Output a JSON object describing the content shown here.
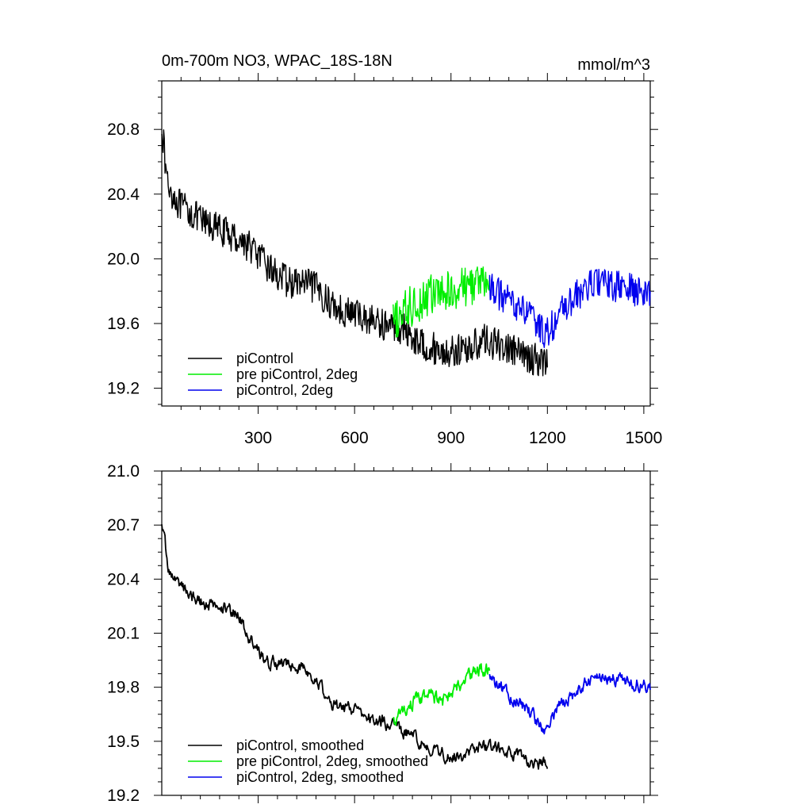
{
  "chart_data": [
    {
      "type": "line",
      "title": "0m-700m NO3, WPAC_18S-18N",
      "units": "mmol/m^3",
      "xlim": [
        0,
        1520
      ],
      "ylim": [
        19.09,
        21.1
      ],
      "xticks": [
        300,
        600,
        900,
        1200,
        1500
      ],
      "yticks": [
        19.2,
        19.6,
        20.0,
        20.4,
        20.8
      ],
      "ytick_labels": [
        "19.2",
        "19.6",
        "20.0",
        "20.4",
        "20.8"
      ],
      "legend_position": "bottom-left",
      "series": [
        {
          "name": "piControl",
          "color": "#000000",
          "x": [
            0,
            10,
            20,
            40,
            60,
            80,
            100,
            130,
            160,
            200,
            240,
            280,
            320,
            360,
            400,
            440,
            480,
            520,
            560,
            600,
            640,
            680,
            720,
            760,
            800,
            840,
            880,
            920,
            960,
            1000,
            1040,
            1080,
            1120,
            1160,
            1200
          ],
          "y": [
            20.85,
            20.6,
            20.45,
            20.38,
            20.32,
            20.3,
            20.27,
            20.22,
            20.2,
            20.16,
            20.12,
            20.07,
            19.97,
            19.9,
            19.85,
            19.85,
            19.82,
            19.73,
            19.68,
            19.66,
            19.63,
            19.6,
            19.58,
            19.56,
            19.48,
            19.45,
            19.42,
            19.43,
            19.45,
            19.5,
            19.47,
            19.45,
            19.4,
            19.38,
            19.36
          ],
          "noise": 0.1
        },
        {
          "name": "pre piControl, 2deg",
          "color": "#00ee00",
          "x": [
            720,
            760,
            800,
            840,
            880,
            920,
            960,
            1000,
            1020
          ],
          "y": [
            19.6,
            19.68,
            19.74,
            19.78,
            19.78,
            19.82,
            19.84,
            19.86,
            19.85
          ],
          "noise": 0.13
        },
        {
          "name": "piControl, 2deg",
          "color": "#0000ee",
          "x": [
            1020,
            1060,
            1100,
            1140,
            1180,
            1200,
            1240,
            1280,
            1320,
            1360,
            1400,
            1440,
            1480,
            1520
          ],
          "y": [
            19.84,
            19.76,
            19.72,
            19.66,
            19.56,
            19.54,
            19.66,
            19.75,
            19.82,
            19.86,
            19.83,
            19.82,
            19.8,
            19.79
          ],
          "noise": 0.1
        }
      ]
    },
    {
      "type": "line",
      "xlim": [
        0,
        1520
      ],
      "ylim": [
        19.2,
        21.0
      ],
      "xticks": [
        300,
        600,
        900,
        1200,
        1500
      ],
      "yticks": [
        19.2,
        19.5,
        19.8,
        20.1,
        20.4,
        20.7,
        21.0
      ],
      "ytick_labels": [
        "19.2",
        "19.5",
        "19.8",
        "20.1",
        "20.4",
        "20.7",
        "21.0"
      ],
      "legend_position": "bottom-left",
      "series": [
        {
          "name": "piControl, smoothed",
          "color": "#000000",
          "x": [
            0,
            10,
            20,
            40,
            60,
            80,
            100,
            130,
            160,
            200,
            240,
            280,
            320,
            360,
            400,
            440,
            480,
            520,
            560,
            600,
            640,
            680,
            720,
            760,
            800,
            840,
            880,
            920,
            960,
            1000,
            1040,
            1080,
            1120,
            1160,
            1200
          ],
          "y": [
            20.73,
            20.6,
            20.45,
            20.4,
            20.37,
            20.32,
            20.3,
            20.27,
            20.25,
            20.24,
            20.2,
            20.05,
            19.95,
            19.93,
            19.92,
            19.9,
            19.85,
            19.72,
            19.68,
            19.68,
            19.63,
            19.62,
            19.58,
            19.55,
            19.5,
            19.46,
            19.43,
            19.42,
            19.44,
            19.48,
            19.46,
            19.44,
            19.4,
            19.38,
            19.37
          ],
          "noise": 0.035
        },
        {
          "name": "pre piControl, 2deg, smoothed",
          "color": "#00ee00",
          "x": [
            720,
            760,
            800,
            840,
            880,
            920,
            960,
            1000,
            1020
          ],
          "y": [
            19.6,
            19.68,
            19.74,
            19.74,
            19.72,
            19.8,
            19.86,
            19.9,
            19.88
          ],
          "noise": 0.04
        },
        {
          "name": "piControl, 2deg, smoothed",
          "color": "#0000ee",
          "x": [
            1020,
            1060,
            1100,
            1140,
            1180,
            1200,
            1240,
            1280,
            1320,
            1360,
            1400,
            1440,
            1480,
            1520
          ],
          "y": [
            19.86,
            19.78,
            19.73,
            19.68,
            19.58,
            19.57,
            19.7,
            19.76,
            19.82,
            19.87,
            19.85,
            19.84,
            19.82,
            19.8
          ],
          "noise": 0.035
        }
      ]
    }
  ]
}
